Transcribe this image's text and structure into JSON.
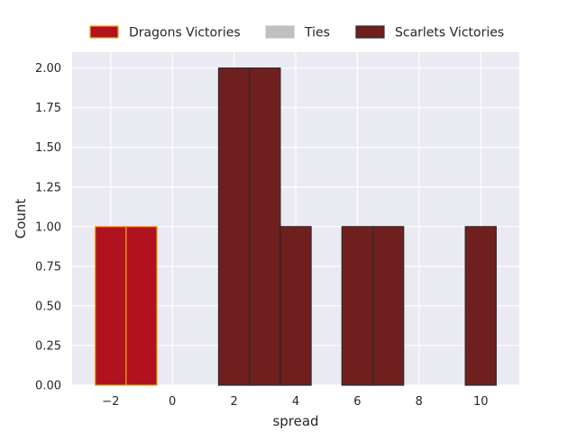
{
  "chart_data": {
    "type": "bar",
    "title": "",
    "xlabel": "spread",
    "ylabel": "Count",
    "xlim": [
      -3.25,
      11.25
    ],
    "ylim": [
      0,
      2.1
    ],
    "grid": true,
    "legend_placement": "top-center, outside",
    "bin_width": 1,
    "x_ticks": [
      -2,
      0,
      2,
      4,
      6,
      8,
      10
    ],
    "x_tick_labels": [
      "−2",
      "0",
      "2",
      "4",
      "6",
      "8",
      "10"
    ],
    "y_ticks": [
      0,
      0.25,
      0.5,
      0.75,
      1.0,
      1.25,
      1.5,
      1.75,
      2.0
    ],
    "y_tick_labels": [
      "0.00",
      "0.25",
      "0.50",
      "0.75",
      "1.00",
      "1.25",
      "1.50",
      "1.75",
      "2.00"
    ],
    "series": [
      {
        "name": "Dragons Victories",
        "color": "#b1121f",
        "edgecolor": "#e8a317",
        "bins": [
          {
            "x0": -2.5,
            "x1": -1.5,
            "count": 1
          },
          {
            "x0": -1.5,
            "x1": -0.5,
            "count": 1
          }
        ]
      },
      {
        "name": "Ties",
        "color": "#c0c0c0",
        "edgecolor": "#c0c0c0",
        "bins": []
      },
      {
        "name": "Scarlets Victories",
        "color": "#701f1e",
        "edgecolor": "#2b2b2b",
        "bins": [
          {
            "x0": 1.5,
            "x1": 2.5,
            "count": 2
          },
          {
            "x0": 2.5,
            "x1": 3.5,
            "count": 2
          },
          {
            "x0": 3.5,
            "x1": 4.5,
            "count": 1
          },
          {
            "x0": 4.5,
            "x1": 5.5,
            "count": 0
          },
          {
            "x0": 5.5,
            "x1": 6.5,
            "count": 1
          },
          {
            "x0": 6.5,
            "x1": 7.5,
            "count": 1
          },
          {
            "x0": 7.5,
            "x1": 8.5,
            "count": 0
          },
          {
            "x0": 8.5,
            "x1": 9.5,
            "count": 0
          },
          {
            "x0": 9.5,
            "x1": 10.5,
            "count": 1
          }
        ]
      }
    ],
    "colors": {
      "plot_background": "#eaeaf2",
      "gridline": "#ffffff",
      "text": "#262626"
    }
  }
}
